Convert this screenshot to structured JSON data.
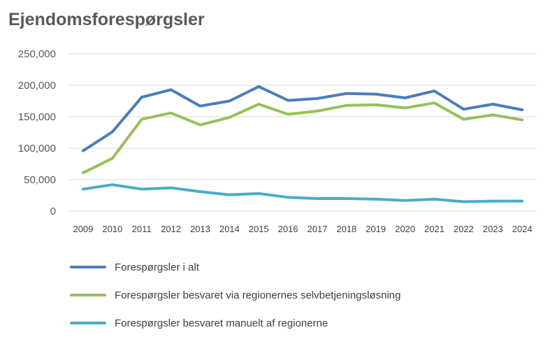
{
  "chart_data": {
    "type": "line",
    "title": "Ejendomsforespørgsler",
    "xlabel": "",
    "ylabel": "",
    "categories": [
      "2009",
      "2010",
      "2011",
      "2012",
      "2013",
      "2014",
      "2015",
      "2016",
      "2017",
      "2018",
      "2019",
      "2020",
      "2021",
      "2022",
      "2023",
      "2024"
    ],
    "ylim": [
      0,
      250000
    ],
    "yticks": [
      0,
      50000,
      100000,
      150000,
      200000,
      250000
    ],
    "ytick_labels": [
      "0",
      "50,000",
      "100,000",
      "150,000",
      "200,000",
      "250,000"
    ],
    "grid": true,
    "legend_position": "bottom",
    "series": [
      {
        "name": "Forespørgsler i alt",
        "color": "#4a7ebb",
        "values": [
          96000,
          126000,
          181000,
          193000,
          167000,
          175000,
          198000,
          176000,
          179000,
          187000,
          186000,
          180000,
          191000,
          162000,
          170000,
          161000
        ]
      },
      {
        "name": "Forespørgsler besvaret via regionernes selvbetjeningsløsning",
        "color": "#98c05c",
        "values": [
          61000,
          84000,
          146000,
          156000,
          137000,
          149000,
          170000,
          154000,
          159000,
          168000,
          169000,
          164000,
          172000,
          146000,
          153000,
          145000
        ]
      },
      {
        "name": "Forespørgsler besvaret manuelt af regionerne",
        "color": "#4bacc6",
        "values": [
          35000,
          42000,
          35000,
          37000,
          31000,
          26000,
          28000,
          22000,
          20000,
          20000,
          19000,
          17000,
          19000,
          15000,
          16000,
          16000
        ]
      }
    ]
  }
}
